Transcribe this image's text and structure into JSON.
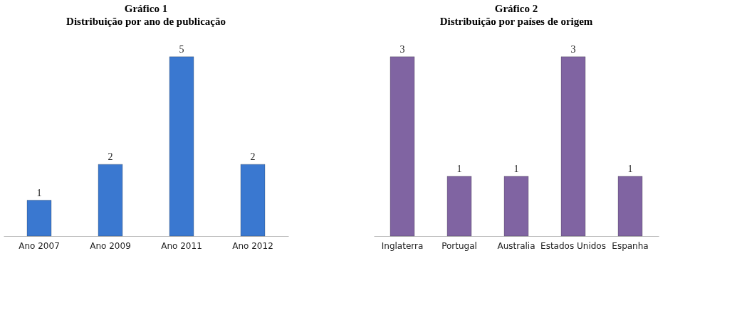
{
  "chart_data": [
    {
      "type": "bar",
      "title": "Gráfico 1",
      "subtitle": "Distribuição por ano de publicação",
      "categories": [
        "Ano 2007",
        "Ano 2009",
        "Ano 2011",
        "Ano 2012"
      ],
      "values": [
        1,
        2,
        5,
        2
      ],
      "color": "#3a78d0",
      "data_labels": true,
      "grid": false
    },
    {
      "type": "bar",
      "title": "Gráfico 2",
      "subtitle": "Distribuição por países de origem",
      "categories": [
        "Inglaterra",
        "Portugal",
        "Australia",
        "Estados Unidos",
        "Espanha"
      ],
      "values": [
        3,
        1,
        1,
        3,
        1
      ],
      "color": "#8064a2",
      "data_labels": true,
      "grid": false
    }
  ]
}
